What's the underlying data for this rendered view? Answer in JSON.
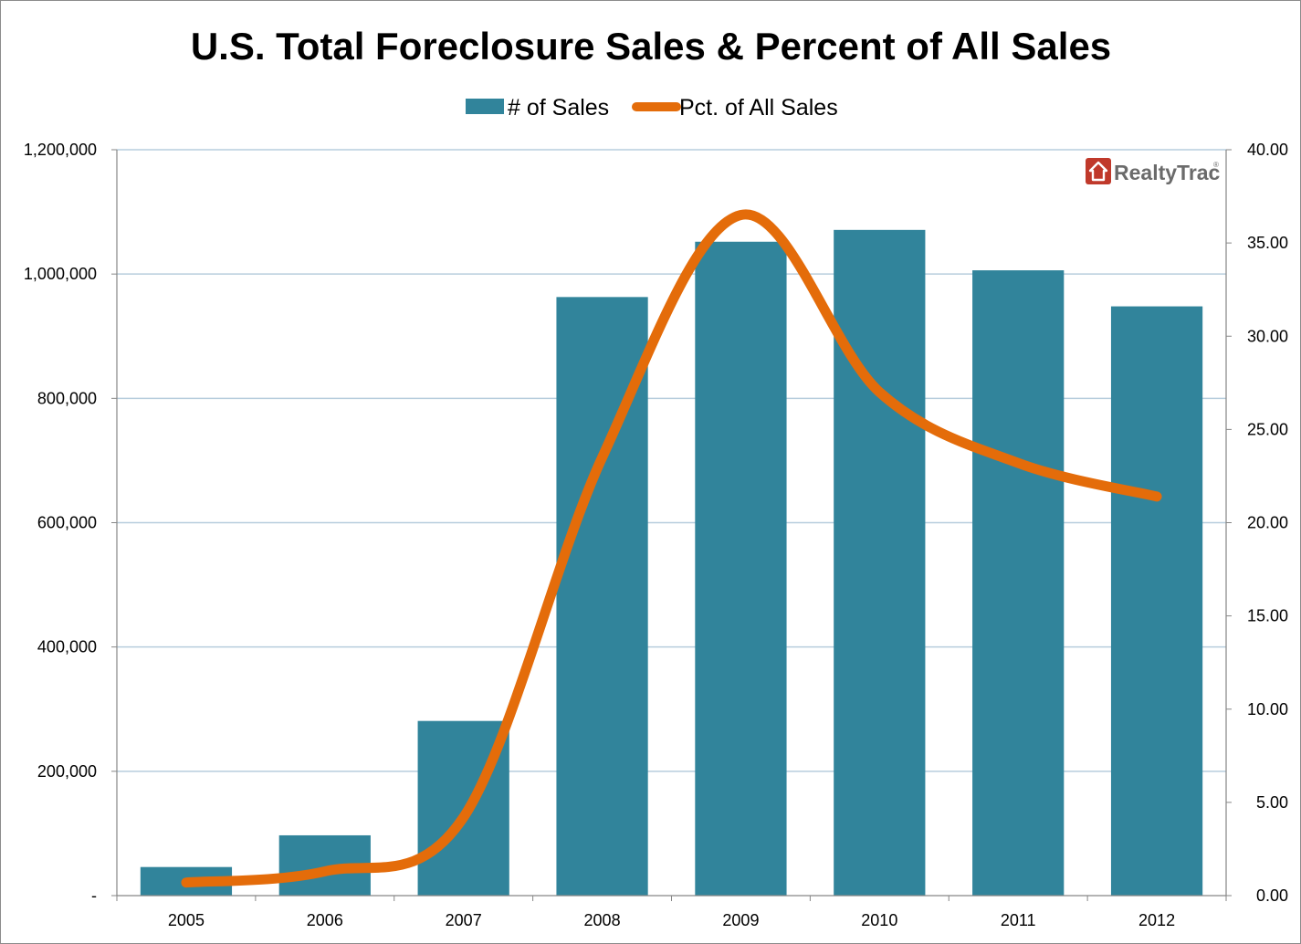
{
  "chart_data": {
    "type": "bar",
    "title": "U.S. Total Foreclosure Sales & Percent of All Sales",
    "categories": [
      "2005",
      "2006",
      "2007",
      "2008",
      "2009",
      "2010",
      "2011",
      "2012"
    ],
    "series": [
      {
        "name": "# of Sales",
        "type": "bar",
        "axis": "left",
        "color": "#31849B",
        "values": [
          46000,
          97000,
          281000,
          963000,
          1052000,
          1071000,
          1006000,
          948000
        ]
      },
      {
        "name": "Pct. of All Sales",
        "type": "line",
        "axis": "right",
        "smooth": true,
        "color": "#E46C0A",
        "values": [
          0.7,
          1.3,
          4.2,
          23.5,
          36.5,
          27.0,
          23.2,
          21.4
        ]
      }
    ],
    "y_left": {
      "range": [
        0,
        1200000
      ],
      "ticks": [
        "-",
        "200,000",
        "400,000",
        "600,000",
        "800,000",
        "1,000,000",
        "1,200,000"
      ]
    },
    "y_right": {
      "range": [
        0,
        40
      ],
      "ticks": [
        "0.00",
        "5.00",
        "10.00",
        "15.00",
        "20.00",
        "25.00",
        "30.00",
        "35.00",
        "40.00"
      ]
    },
    "grid": true,
    "legend_position": "top",
    "gridline_color": "#B7CDDD",
    "axis_color": "#868686"
  },
  "logo": {
    "text": "RealtyTrac",
    "registered_mark": "®",
    "icon": "house-icon",
    "color": "#C0392B"
  }
}
